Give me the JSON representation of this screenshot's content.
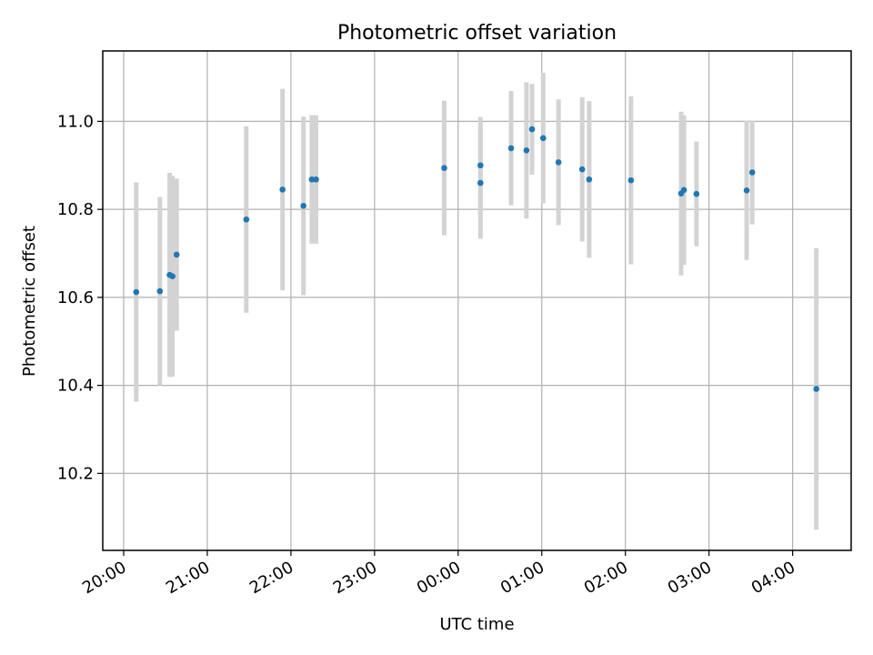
{
  "chart_data": {
    "type": "scatter",
    "title": "Photometric offset variation",
    "xlabel": "UTC time",
    "ylabel": "Photometric offset",
    "x_unit": "UTC time, 20:00 to 04:00 across midnight",
    "xlim": [
      "19:45",
      "04:42"
    ],
    "ylim": [
      10.025,
      11.16
    ],
    "x_ticks": [
      "20:00",
      "21:00",
      "22:00",
      "23:00",
      "00:00",
      "01:00",
      "02:00",
      "03:00",
      "04:00"
    ],
    "y_ticks": [
      10.2,
      10.4,
      10.6,
      10.8,
      11.0
    ],
    "y_tick_labels": [
      "10.2",
      "10.4",
      "10.6",
      "10.8",
      "11.0"
    ],
    "grid": true,
    "legend": "none",
    "marker_color": "#1f77b4",
    "errorbar_color": "#d3d3d3",
    "series": [
      {
        "points": [
          {
            "x": "20:09",
            "y": 10.612,
            "err": 0.249
          },
          {
            "x": "20:26",
            "y": 10.614,
            "err": 0.214
          },
          {
            "x": "20:33",
            "y": 10.651,
            "err": 0.232
          },
          {
            "x": "20:35",
            "y": 10.648,
            "err": 0.228
          },
          {
            "x": "20:38",
            "y": 10.697,
            "err": 0.173
          },
          {
            "x": "21:28",
            "y": 10.777,
            "err": 0.212
          },
          {
            "x": "21:54",
            "y": 10.845,
            "err": 0.229
          },
          {
            "x": "22:09",
            "y": 10.808,
            "err": 0.203
          },
          {
            "x": "22:15",
            "y": 10.868,
            "err": 0.146
          },
          {
            "x": "22:18",
            "y": 10.868,
            "err": 0.146
          },
          {
            "x": "23:50",
            "y": 10.894,
            "err": 0.153
          },
          {
            "x": "00:16",
            "y": 10.86,
            "err": 0.127
          },
          {
            "x": "00:16",
            "y": 10.9,
            "err": 0.11
          },
          {
            "x": "00:38",
            "y": 10.939,
            "err": 0.13
          },
          {
            "x": "00:49",
            "y": 10.934,
            "err": 0.155
          },
          {
            "x": "00:53",
            "y": 10.982,
            "err": 0.103
          },
          {
            "x": "01:01",
            "y": 10.962,
            "err": 0.148
          },
          {
            "x": "01:12",
            "y": 10.907,
            "err": 0.143
          },
          {
            "x": "01:29",
            "y": 10.891,
            "err": 0.164
          },
          {
            "x": "01:34",
            "y": 10.868,
            "err": 0.178
          },
          {
            "x": "02:04",
            "y": 10.866,
            "err": 0.191
          },
          {
            "x": "02:40",
            "y": 10.836,
            "err": 0.186
          },
          {
            "x": "02:42",
            "y": 10.844,
            "err": 0.17
          },
          {
            "x": "02:51",
            "y": 10.835,
            "err": 0.119
          },
          {
            "x": "03:27",
            "y": 10.843,
            "err": 0.158
          },
          {
            "x": "03:31",
            "y": 10.884,
            "err": 0.118
          },
          {
            "x": "04:17",
            "y": 10.392,
            "err": 0.32
          }
        ]
      }
    ]
  }
}
